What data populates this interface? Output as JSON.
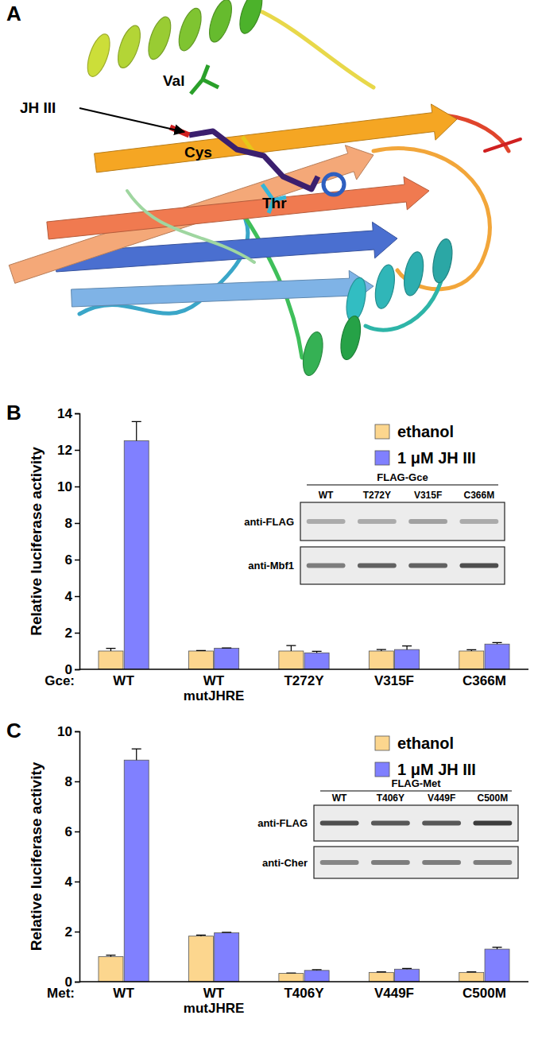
{
  "structure": {
    "label": "A",
    "annotations": [
      "Val",
      "JH III",
      "Cys",
      "Thr"
    ]
  },
  "chart_data": [
    {
      "type": "bar",
      "panel_label": "B",
      "x_label": "Gce:",
      "y_label": "Relative luciferase activity",
      "categories": [
        "WT",
        "WT mutJHRE",
        "T272Y",
        "V315F",
        "C366M"
      ],
      "series": [
        {
          "name": "ethanol",
          "color": "#fcd68e",
          "values": [
            1,
            1,
            1,
            1,
            1
          ],
          "errors": [
            0.15,
            0.03,
            0.3,
            0.08,
            0.07
          ]
        },
        {
          "name": "1 μM JH III",
          "color": "#8080ff",
          "values": [
            12.5,
            1.15,
            0.9,
            1.08,
            1.38
          ],
          "errors": [
            1.05,
            0.02,
            0.08,
            0.2,
            0.08
          ]
        }
      ],
      "ylim": [
        0,
        14
      ],
      "yticks": [
        0,
        2,
        4,
        6,
        8,
        10,
        12,
        14
      ],
      "legend": "top-right",
      "inset": {
        "title": "FLAG-Gce",
        "lanes": [
          "WT",
          "T272Y",
          "V315F",
          "C366M"
        ],
        "rows": [
          "anti-FLAG",
          "anti-Mbf1"
        ]
      }
    },
    {
      "type": "bar",
      "panel_label": "C",
      "x_label": "Met:",
      "y_label": "Relative luciferase activity",
      "categories": [
        "WT",
        "WT mutJHRE",
        "T406Y",
        "V449F",
        "C500M"
      ],
      "series": [
        {
          "name": "ethanol",
          "color": "#fcd68e",
          "values": [
            1,
            1.82,
            0.33,
            0.37,
            0.37
          ],
          "errors": [
            0.06,
            0.04,
            0.02,
            0.02,
            0.02
          ]
        },
        {
          "name": "1 μM JH III",
          "color": "#8080ff",
          "values": [
            8.85,
            1.95,
            0.45,
            0.5,
            1.3
          ],
          "errors": [
            0.45,
            0.02,
            0.03,
            0.03,
            0.08
          ]
        }
      ],
      "ylim": [
        0,
        10
      ],
      "yticks": [
        0,
        2,
        4,
        6,
        8,
        10
      ],
      "legend": "top-right",
      "inset": {
        "title": "FLAG-Met",
        "lanes": [
          "WT",
          "T406Y",
          "V449F",
          "C500M"
        ],
        "rows": [
          "anti-FLAG",
          "anti-Cher"
        ]
      }
    }
  ]
}
